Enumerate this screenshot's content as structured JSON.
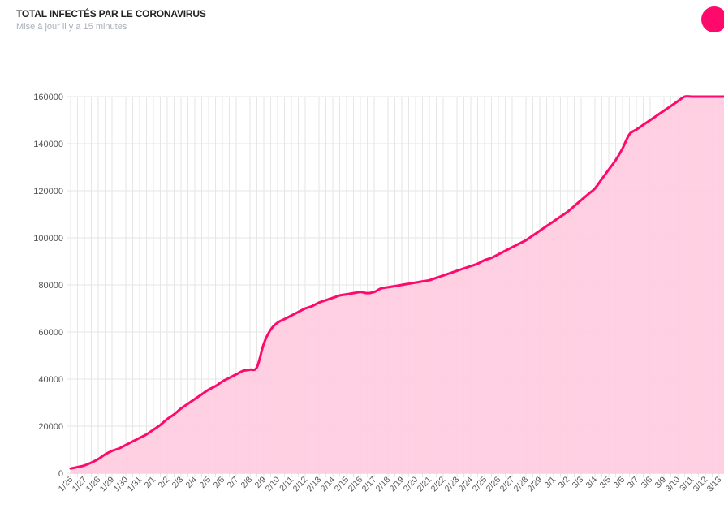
{
  "header": {
    "title": "TOTAL INFECTÉS PAR LE CORONAVIRUS",
    "subtitle": "Mise à jour il y a 15 minutes"
  },
  "colors": {
    "accent": "#ff0a6c",
    "fill": "#ffcce0",
    "grid": "#e6e6e6"
  },
  "chart_data": {
    "type": "area",
    "title": "TOTAL INFECTÉS PAR LE CORONAVIRUS",
    "xlabel": "",
    "ylabel": "",
    "ylim": [
      0,
      160000
    ],
    "yticks": [
      0,
      20000,
      40000,
      60000,
      80000,
      100000,
      120000,
      140000,
      160000
    ],
    "grid": true,
    "categories": [
      "1/26",
      "1/27",
      "1/28",
      "1/29",
      "1/30",
      "1/31",
      "2/1",
      "2/2",
      "2/3",
      "2/4",
      "2/5",
      "2/6",
      "2/7",
      "2/8",
      "2/9",
      "2/10",
      "2/11",
      "2/12",
      "2/13",
      "2/14",
      "2/15",
      "2/16",
      "2/17",
      "2/18",
      "2/19",
      "2/20",
      "2/21",
      "2/22",
      "2/23",
      "2/24",
      "2/25",
      "2/26",
      "2/27",
      "2/28",
      "2/29",
      "3/1",
      "3/2",
      "3/3",
      "3/4",
      "3/5",
      "3/6",
      "3/7",
      "3/8",
      "3/9",
      "3/10",
      "3/11",
      "3/12",
      "3/13"
    ],
    "x": [
      "1/26",
      "1/26",
      "1/27",
      "1/27",
      "1/28",
      "1/28",
      "1/29",
      "1/29",
      "1/30",
      "1/30",
      "1/31",
      "1/31",
      "2/1",
      "2/1",
      "2/2",
      "2/2",
      "2/3",
      "2/3",
      "2/4",
      "2/4",
      "2/5",
      "2/5",
      "2/6",
      "2/6",
      "2/7",
      "2/7",
      "2/8",
      "2/8",
      "2/9",
      "2/9",
      "2/10",
      "2/10",
      "2/11",
      "2/11",
      "2/12",
      "2/12",
      "2/13",
      "2/13",
      "2/14",
      "2/14",
      "2/15",
      "2/15",
      "2/16",
      "2/16",
      "2/17",
      "2/17",
      "2/18",
      "2/18",
      "2/19",
      "2/19",
      "2/20",
      "2/20",
      "2/21",
      "2/21",
      "2/22",
      "2/22",
      "2/23",
      "2/23",
      "2/24",
      "2/24",
      "2/25",
      "2/25",
      "2/26",
      "2/26",
      "2/27",
      "2/27",
      "2/28",
      "2/28",
      "2/29",
      "2/29",
      "3/1",
      "3/1",
      "3/2",
      "3/2",
      "3/3",
      "3/3",
      "3/4",
      "3/4",
      "3/5",
      "3/5",
      "3/6",
      "3/6",
      "3/7",
      "3/7",
      "3/8",
      "3/8",
      "3/9",
      "3/9",
      "3/10",
      "3/10",
      "3/11",
      "3/11",
      "3/12",
      "3/12",
      "3/13",
      "3/13"
    ],
    "series": [
      {
        "values": [
          2000,
          2600,
          3300,
          4500,
          6000,
          8000,
          9500,
          10500,
          12000,
          13500,
          15000,
          16500,
          18500,
          20500,
          23000,
          25000,
          27500,
          29500,
          31500,
          33500,
          35500,
          37000,
          39000,
          40500,
          42000,
          43500,
          44000,
          45000,
          55000,
          61000,
          64000,
          65500,
          67000,
          68500,
          70000,
          71000,
          72500,
          73500,
          74500,
          75500,
          76000,
          76500,
          77000,
          76500,
          77000,
          78500,
          79000,
          79500,
          80000,
          80500,
          81000,
          81500,
          82000,
          83000,
          84000,
          85000,
          86000,
          87000,
          88000,
          89000,
          90500,
          91500,
          93000,
          94500,
          96000,
          97500,
          99000,
          101000,
          103000,
          105000,
          107000,
          109000,
          111000,
          113500,
          116000,
          118500,
          121000,
          125000,
          129000,
          133000,
          138000,
          144000,
          146000,
          148000,
          150000,
          152000,
          154000,
          156000,
          158000,
          160000,
          160000,
          160000,
          160000,
          160000,
          160000,
          160000
        ]
      }
    ]
  }
}
